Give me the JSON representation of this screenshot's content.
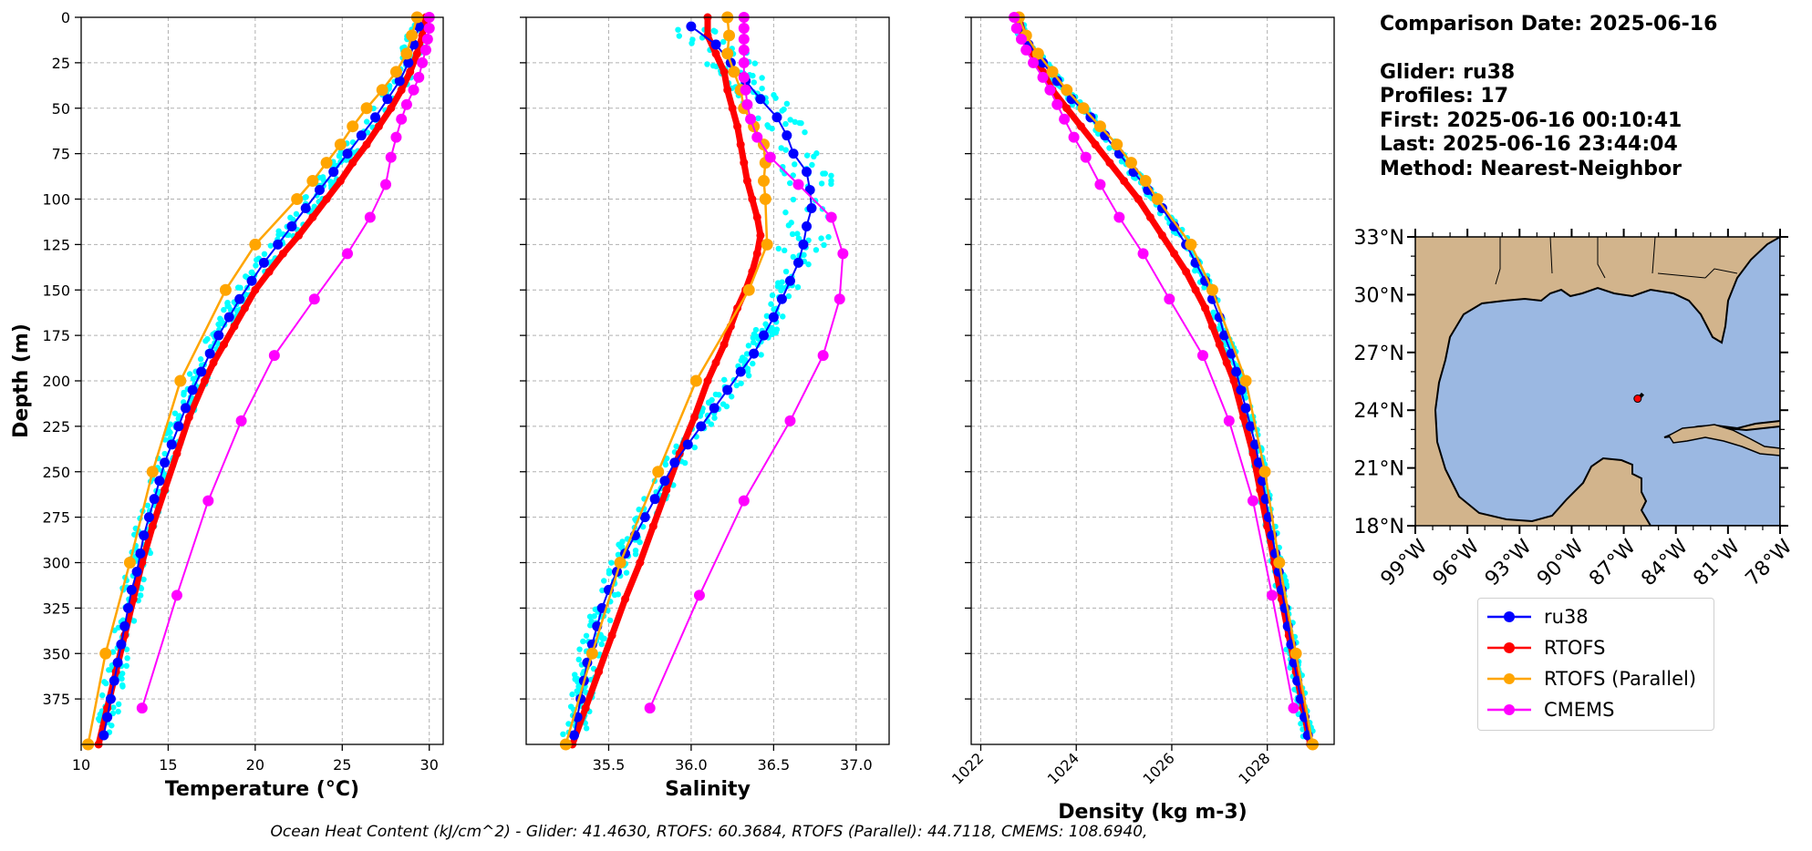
{
  "info": {
    "comparison_date": "Comparison Date: 2025-06-16",
    "glider": "Glider: ru38",
    "profiles": "Profiles: 17",
    "first": "First: 2025-06-16 00:10:41",
    "last": "Last: 2025-06-16 23:44:04",
    "method": "Method: Nearest-Neighbor"
  },
  "footer": "Ocean Heat Content (kJ/cm^2) - Glider: 41.4630,  RTOFS: 60.3684,  RTOFS (Parallel): 44.7118,  CMEMS: 108.6940,",
  "colors": {
    "ru38": "#0000ff",
    "rtofs": "#ff0000",
    "rtofs_parallel": "#ffa500",
    "cmems": "#ff00ff",
    "glider_scatter": "#00ffff",
    "land": "#d2b48c",
    "ocean": "#9bb8e2"
  },
  "legend": [
    {
      "label": "ru38",
      "color": "#0000ff"
    },
    {
      "label": "RTOFS",
      "color": "#ff0000"
    },
    {
      "label": "RTOFS (Parallel)",
      "color": "#ffa500"
    },
    {
      "label": "CMEMS",
      "color": "#ff00ff"
    }
  ],
  "chart_data": [
    {
      "type": "line",
      "xlabel": "Temperature (°C)",
      "ylabel": "Depth (m)",
      "xlim": [
        10,
        30.8
      ],
      "ylim": [
        400,
        0
      ],
      "xticks": [
        10,
        15,
        20,
        25,
        30
      ],
      "yticks": [
        0,
        25,
        50,
        75,
        100,
        125,
        150,
        175,
        200,
        225,
        250,
        275,
        300,
        325,
        350,
        375
      ],
      "grid": true,
      "series": [
        {
          "name": "ru38",
          "depth": [
            5,
            15,
            25,
            35,
            45,
            55,
            65,
            75,
            85,
            95,
            105,
            115,
            125,
            135,
            145,
            155,
            165,
            175,
            185,
            195,
            205,
            215,
            225,
            235,
            245,
            255,
            265,
            275,
            285,
            295,
            305,
            315,
            325,
            335,
            345,
            355,
            365,
            375,
            385,
            395
          ],
          "values": [
            29.4,
            29.1,
            28.8,
            28.3,
            27.6,
            26.9,
            26.1,
            25.3,
            24.5,
            23.7,
            22.9,
            22.1,
            21.3,
            20.5,
            19.8,
            19.1,
            18.5,
            17.9,
            17.4,
            16.9,
            16.4,
            16.0,
            15.6,
            15.2,
            14.8,
            14.5,
            14.2,
            13.9,
            13.6,
            13.4,
            13.2,
            12.9,
            12.7,
            12.5,
            12.3,
            12.1,
            11.9,
            11.7,
            11.5,
            11.3
          ]
        },
        {
          "name": "RTOFS",
          "depth": [
            0,
            10,
            20,
            30,
            40,
            50,
            60,
            70,
            80,
            90,
            100,
            110,
            120,
            130,
            140,
            150,
            160,
            170,
            180,
            190,
            200,
            220,
            240,
            260,
            280,
            300,
            320,
            340,
            360,
            380,
            400
          ],
          "values": [
            29.8,
            29.6,
            29.3,
            28.9,
            28.4,
            27.8,
            27.1,
            26.4,
            25.6,
            24.9,
            24.1,
            23.3,
            22.5,
            21.6,
            20.8,
            20.0,
            19.4,
            18.8,
            18.2,
            17.6,
            17.1,
            16.2,
            15.5,
            14.8,
            14.1,
            13.5,
            13.0,
            12.5,
            12.0,
            11.5,
            11.0
          ]
        },
        {
          "name": "RTOFS (Parallel)",
          "depth": [
            0,
            10,
            20,
            30,
            40,
            50,
            60,
            70,
            80,
            90,
            100,
            125,
            150,
            200,
            250,
            300,
            350,
            400
          ],
          "values": [
            29.3,
            29.0,
            28.7,
            28.1,
            27.3,
            26.4,
            25.6,
            24.9,
            24.1,
            23.3,
            22.4,
            20.0,
            18.3,
            15.7,
            14.1,
            12.8,
            11.4,
            10.4
          ]
        },
        {
          "name": "CMEMS",
          "depth": [
            0,
            6,
            12,
            18,
            25,
            33,
            40,
            48,
            56,
            66,
            77,
            92,
            110,
            130,
            155,
            186,
            222,
            266,
            318,
            380
          ],
          "values": [
            30.0,
            30.0,
            29.9,
            29.8,
            29.6,
            29.4,
            29.1,
            28.7,
            28.4,
            28.1,
            27.8,
            27.5,
            26.6,
            25.3,
            23.4,
            21.1,
            19.2,
            17.3,
            15.5,
            13.5
          ]
        }
      ]
    },
    {
      "type": "line",
      "xlabel": "Salinity",
      "xlim": [
        35.0,
        37.2
      ],
      "ylim": [
        400,
        0
      ],
      "xticks": [
        35.5,
        36.0,
        36.5,
        37.0
      ],
      "grid": true,
      "series": [
        {
          "name": "ru38",
          "depth": [
            5,
            15,
            25,
            35,
            45,
            55,
            65,
            75,
            85,
            95,
            105,
            115,
            125,
            135,
            145,
            155,
            165,
            175,
            185,
            195,
            205,
            215,
            225,
            235,
            245,
            255,
            265,
            275,
            285,
            295,
            305,
            315,
            325,
            335,
            345,
            355,
            365,
            375,
            385,
            395
          ],
          "values": [
            36.0,
            36.15,
            36.24,
            36.33,
            36.42,
            36.52,
            36.58,
            36.62,
            36.7,
            36.72,
            36.73,
            36.7,
            36.68,
            36.65,
            36.6,
            36.55,
            36.5,
            36.44,
            36.38,
            36.3,
            36.22,
            36.14,
            36.06,
            35.98,
            35.9,
            35.84,
            35.78,
            35.72,
            35.66,
            35.6,
            35.55,
            35.5,
            35.46,
            35.43,
            35.4,
            35.37,
            35.35,
            35.33,
            35.31,
            35.29
          ]
        },
        {
          "name": "RTOFS",
          "depth": [
            0,
            10,
            20,
            30,
            40,
            50,
            60,
            70,
            80,
            90,
            100,
            110,
            120,
            130,
            140,
            150,
            160,
            170,
            180,
            190,
            200,
            220,
            240,
            260,
            280,
            300,
            320,
            340,
            360,
            380,
            400
          ],
          "values": [
            36.1,
            36.1,
            36.15,
            36.2,
            36.22,
            36.25,
            36.28,
            36.3,
            36.32,
            36.34,
            36.37,
            36.4,
            36.42,
            36.4,
            36.37,
            36.33,
            36.28,
            36.24,
            36.2,
            36.15,
            36.1,
            36.02,
            35.93,
            35.85,
            35.77,
            35.69,
            35.6,
            35.52,
            35.44,
            35.36,
            35.28
          ]
        },
        {
          "name": "RTOFS (Parallel)",
          "depth": [
            0,
            10,
            20,
            30,
            40,
            50,
            60,
            70,
            80,
            90,
            100,
            125,
            150,
            200,
            250,
            300,
            350,
            400
          ],
          "values": [
            36.22,
            36.23,
            36.22,
            36.26,
            36.3,
            36.32,
            36.38,
            36.44,
            36.45,
            36.44,
            36.45,
            36.46,
            36.35,
            36.03,
            35.8,
            35.57,
            35.4,
            35.24
          ]
        },
        {
          "name": "CMEMS",
          "depth": [
            0,
            6,
            12,
            18,
            25,
            33,
            40,
            48,
            56,
            66,
            77,
            92,
            110,
            130,
            155,
            186,
            222,
            266,
            318,
            380
          ],
          "values": [
            36.32,
            36.32,
            36.32,
            36.32,
            36.32,
            36.32,
            36.33,
            36.34,
            36.36,
            36.4,
            36.48,
            36.65,
            36.85,
            36.92,
            36.9,
            36.8,
            36.6,
            36.32,
            36.05,
            35.75
          ]
        }
      ]
    },
    {
      "type": "line",
      "xlabel": "Density (kg m-3)",
      "xlim": [
        1021.8,
        1029.4
      ],
      "ylim": [
        400,
        0
      ],
      "xticks": [
        1022,
        1024,
        1026,
        1028
      ],
      "grid": true,
      "series": [
        {
          "name": "ru38",
          "depth": [
            5,
            15,
            25,
            35,
            45,
            55,
            65,
            75,
            85,
            95,
            105,
            115,
            125,
            135,
            145,
            155,
            165,
            175,
            185,
            195,
            205,
            215,
            225,
            235,
            245,
            255,
            265,
            275,
            285,
            295,
            305,
            315,
            325,
            335,
            345,
            355,
            365,
            375,
            385,
            395
          ],
          "values": [
            1022.8,
            1023.0,
            1023.3,
            1023.6,
            1023.9,
            1024.3,
            1024.6,
            1024.9,
            1025.2,
            1025.5,
            1025.8,
            1026.05,
            1026.3,
            1026.5,
            1026.7,
            1026.85,
            1027.0,
            1027.1,
            1027.25,
            1027.35,
            1027.45,
            1027.55,
            1027.65,
            1027.75,
            1027.82,
            1027.9,
            1027.97,
            1028.03,
            1028.1,
            1028.17,
            1028.24,
            1028.3,
            1028.37,
            1028.43,
            1028.5,
            1028.56,
            1028.63,
            1028.7,
            1028.78,
            1028.85
          ]
        },
        {
          "name": "RTOFS",
          "depth": [
            0,
            10,
            20,
            30,
            40,
            50,
            60,
            70,
            80,
            90,
            100,
            110,
            120,
            130,
            140,
            150,
            160,
            170,
            180,
            190,
            200,
            220,
            240,
            260,
            280,
            300,
            320,
            340,
            360,
            380,
            400
          ],
          "values": [
            1022.8,
            1022.9,
            1023.1,
            1023.3,
            1023.5,
            1023.8,
            1024.1,
            1024.4,
            1024.7,
            1025.0,
            1025.3,
            1025.55,
            1025.8,
            1026.05,
            1026.3,
            1026.5,
            1026.7,
            1026.85,
            1027.0,
            1027.15,
            1027.3,
            1027.5,
            1027.7,
            1027.85,
            1028.0,
            1028.15,
            1028.3,
            1028.45,
            1028.6,
            1028.75,
            1028.9
          ]
        },
        {
          "name": "RTOFS (Parallel)",
          "depth": [
            0,
            10,
            20,
            30,
            40,
            50,
            60,
            70,
            80,
            90,
            100,
            125,
            150,
            200,
            250,
            300,
            350,
            400
          ],
          "values": [
            1022.8,
            1022.95,
            1023.2,
            1023.5,
            1023.8,
            1024.15,
            1024.5,
            1024.85,
            1025.15,
            1025.45,
            1025.7,
            1026.4,
            1026.85,
            1027.55,
            1027.95,
            1028.25,
            1028.6,
            1028.95
          ]
        },
        {
          "name": "CMEMS",
          "depth": [
            0,
            6,
            12,
            18,
            25,
            33,
            40,
            48,
            56,
            66,
            77,
            92,
            110,
            130,
            155,
            186,
            222,
            266,
            318,
            380
          ],
          "values": [
            1022.7,
            1022.75,
            1022.85,
            1022.95,
            1023.1,
            1023.3,
            1023.45,
            1023.6,
            1023.75,
            1023.95,
            1024.2,
            1024.5,
            1024.9,
            1025.4,
            1025.95,
            1026.65,
            1027.2,
            1027.7,
            1028.1,
            1028.55
          ]
        }
      ]
    }
  ],
  "map": {
    "lat_ticks": [
      "33°N",
      "30°N",
      "27°N",
      "24°N",
      "21°N",
      "18°N"
    ],
    "lon_ticks": [
      "99°W",
      "96°W",
      "93°W",
      "90°W",
      "87°W",
      "84°W",
      "81°W",
      "78°W"
    ],
    "lat_values": [
      33,
      30,
      27,
      24,
      21,
      18
    ],
    "lon_values": [
      -99,
      -96,
      -93,
      -90,
      -87,
      -84,
      -81,
      -78
    ],
    "glider_track": [
      [
        -86.2,
        24.6
      ],
      [
        -86.0,
        24.75
      ],
      [
        -85.9,
        24.85
      ]
    ]
  }
}
